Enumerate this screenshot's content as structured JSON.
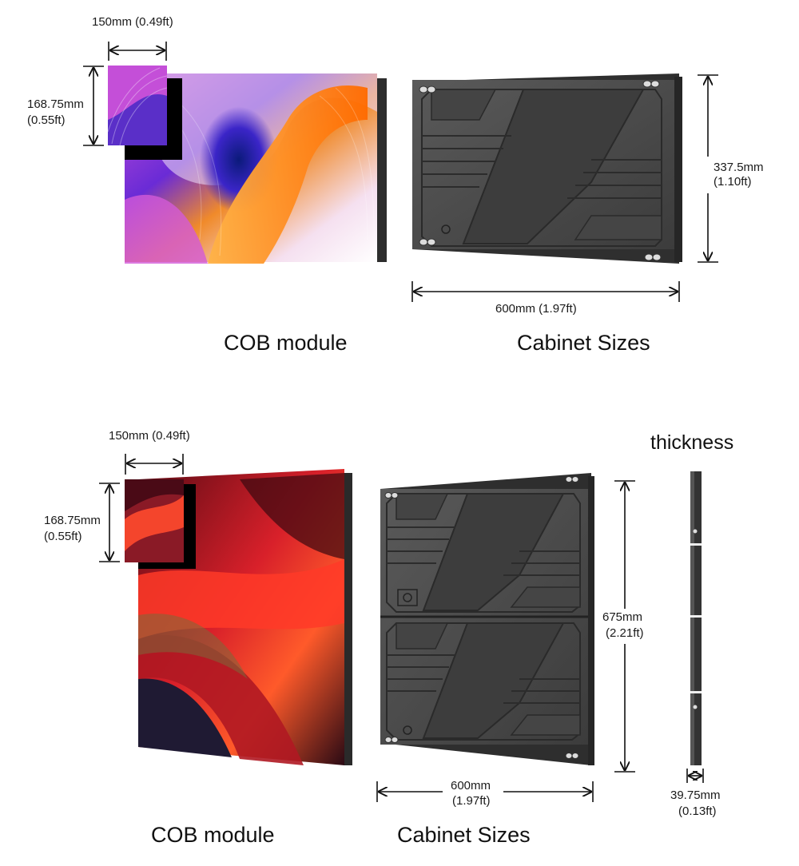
{
  "top": {
    "module": {
      "width_label": "150mm (0.49ft)",
      "height_label_mm": "168.75mm",
      "height_label_ft": "(0.55ft)",
      "caption": "COB module"
    },
    "cabinet": {
      "height_label_mm": "337.5mm",
      "height_label_ft": "(1.10ft)",
      "width_label": "600mm (1.97ft)",
      "caption": "Cabinet Sizes"
    }
  },
  "bottom": {
    "module": {
      "width_label": "150mm (0.49ft)",
      "height_label_mm": "168.75mm",
      "height_label_ft": "(0.55ft)",
      "caption": "COB module"
    },
    "cabinet": {
      "height_label_mm": "675mm",
      "height_label_ft": "(2.21ft)",
      "width_label_mm": "600mm",
      "width_label_ft": "(1.97ft)",
      "caption": "Cabinet Sizes"
    },
    "thickness": {
      "title": "thickness",
      "label_mm": "39.75mm",
      "label_ft": "(0.13ft)"
    }
  },
  "colors": {
    "cabinet_body": "#4a4a4a",
    "cabinet_dark": "#3a3a3a",
    "arrow": "#111111"
  }
}
